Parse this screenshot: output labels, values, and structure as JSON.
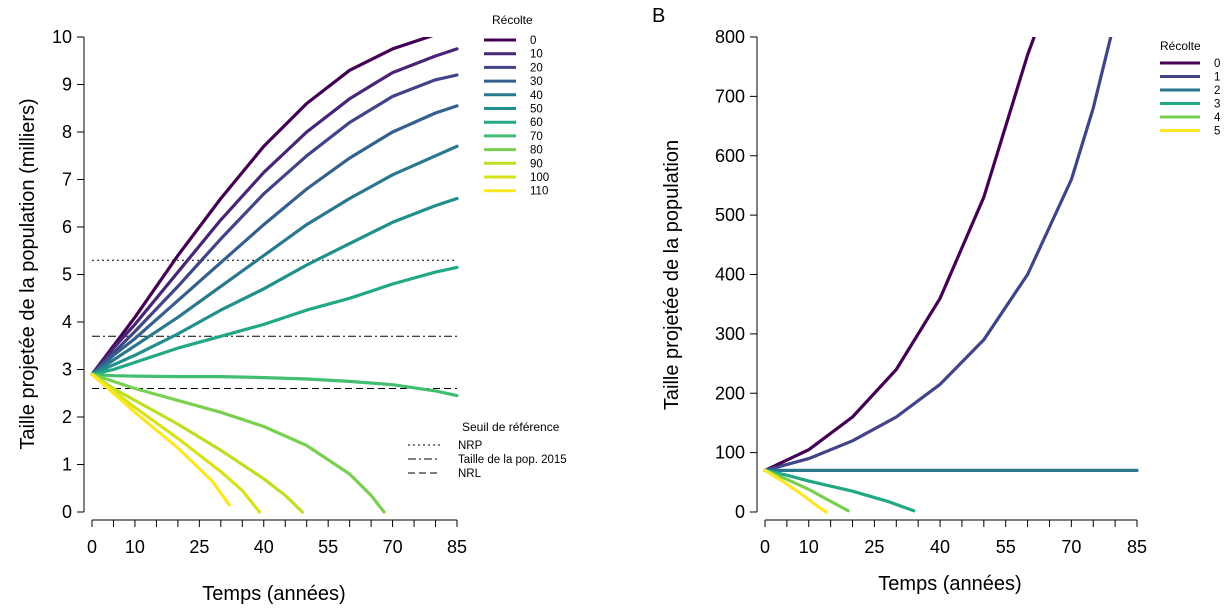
{
  "chart_data": [
    {
      "type": "line",
      "panel_label": "",
      "xlabel": "Temps (années)",
      "ylabel": "Taille projetée de la population (milliers)",
      "xlim": [
        0,
        85
      ],
      "ylim": [
        0,
        10
      ],
      "xticks": [
        0,
        10,
        25,
        40,
        55,
        70,
        85
      ],
      "yticks": [
        0,
        1,
        2,
        3,
        4,
        5,
        6,
        7,
        8,
        9,
        10
      ],
      "legend_title": "Récolte",
      "legend_placement": "top-right",
      "series": [
        {
          "name": "0",
          "color": "#440154",
          "x": [
            0,
            5,
            10,
            20,
            30,
            40,
            50,
            60,
            70,
            80,
            85
          ],
          "y": [
            2.9,
            3.5,
            4.1,
            5.4,
            6.6,
            7.7,
            8.6,
            9.3,
            9.75,
            10.05,
            10.2
          ]
        },
        {
          "name": "10",
          "color": "#482576",
          "x": [
            0,
            5,
            10,
            20,
            30,
            40,
            50,
            60,
            70,
            80,
            85
          ],
          "y": [
            2.9,
            3.45,
            3.95,
            5.05,
            6.15,
            7.15,
            8.0,
            8.7,
            9.25,
            9.6,
            9.75
          ]
        },
        {
          "name": "20",
          "color": "#414487",
          "x": [
            0,
            5,
            10,
            20,
            30,
            40,
            50,
            60,
            70,
            80,
            85
          ],
          "y": [
            2.9,
            3.35,
            3.8,
            4.75,
            5.75,
            6.7,
            7.5,
            8.2,
            8.75,
            9.1,
            9.2
          ]
        },
        {
          "name": "30",
          "color": "#35608d",
          "x": [
            0,
            5,
            10,
            20,
            30,
            40,
            50,
            60,
            70,
            80,
            85
          ],
          "y": [
            2.9,
            3.3,
            3.65,
            4.45,
            5.25,
            6.05,
            6.8,
            7.45,
            8.0,
            8.4,
            8.55
          ]
        },
        {
          "name": "40",
          "color": "#2a788e",
          "x": [
            0,
            5,
            10,
            20,
            30,
            40,
            50,
            60,
            70,
            80,
            85
          ],
          "y": [
            2.9,
            3.2,
            3.5,
            4.1,
            4.75,
            5.4,
            6.05,
            6.6,
            7.1,
            7.5,
            7.7
          ]
        },
        {
          "name": "50",
          "color": "#21908d",
          "x": [
            0,
            5,
            10,
            20,
            30,
            40,
            50,
            60,
            70,
            80,
            85
          ],
          "y": [
            2.9,
            3.1,
            3.3,
            3.75,
            4.25,
            4.7,
            5.2,
            5.65,
            6.1,
            6.45,
            6.6
          ]
        },
        {
          "name": "60",
          "color": "#22a884",
          "x": [
            0,
            5,
            10,
            20,
            30,
            40,
            50,
            60,
            70,
            80,
            85
          ],
          "y": [
            2.9,
            3.0,
            3.15,
            3.45,
            3.7,
            3.95,
            4.25,
            4.5,
            4.8,
            5.05,
            5.15
          ]
        },
        {
          "name": "70",
          "color": "#42be71",
          "x": [
            0,
            5,
            10,
            20,
            30,
            40,
            50,
            60,
            70,
            80,
            85
          ],
          "y": [
            2.9,
            2.87,
            2.86,
            2.85,
            2.85,
            2.83,
            2.8,
            2.75,
            2.68,
            2.55,
            2.45
          ]
        },
        {
          "name": "80",
          "color": "#7ad151",
          "x": [
            0,
            5,
            10,
            20,
            30,
            40,
            50,
            60,
            65,
            68
          ],
          "y": [
            2.9,
            2.75,
            2.6,
            2.35,
            2.1,
            1.8,
            1.4,
            0.8,
            0.35,
            0.0
          ]
        },
        {
          "name": "90",
          "color": "#bddf26",
          "x": [
            0,
            5,
            10,
            20,
            30,
            40,
            45,
            49
          ],
          "y": [
            2.9,
            2.6,
            2.35,
            1.85,
            1.3,
            0.7,
            0.35,
            0.0
          ]
        },
        {
          "name": "100",
          "color": "#d8e219",
          "x": [
            0,
            5,
            10,
            20,
            30,
            35,
            39
          ],
          "y": [
            2.9,
            2.55,
            2.2,
            1.55,
            0.85,
            0.45,
            0.0
          ]
        },
        {
          "name": "110",
          "color": "#fde725",
          "x": [
            0,
            5,
            10,
            20,
            28,
            32
          ],
          "y": [
            2.9,
            2.5,
            2.1,
            1.35,
            0.65,
            0.15
          ]
        }
      ],
      "reference_lines": {
        "title": "Seuil de référence",
        "items": [
          {
            "name": "NRP",
            "y": 5.3,
            "dash": "2,3"
          },
          {
            "name": "Taille de la pop. 2015",
            "y": 3.7,
            "dash": "8,3,2,3"
          },
          {
            "name": "NRL",
            "y": 2.6,
            "dash": "7,4"
          }
        ]
      }
    },
    {
      "type": "line",
      "panel_label": "B",
      "xlabel": "Temps (années)",
      "ylabel": "Taille projetée de la population",
      "xlim": [
        0,
        85
      ],
      "ylim": [
        0,
        800
      ],
      "xticks": [
        0,
        10,
        25,
        40,
        55,
        70,
        85
      ],
      "yticks": [
        0,
        100,
        200,
        300,
        400,
        500,
        600,
        700,
        800
      ],
      "legend_title": "Récolte",
      "legend_placement": "top-right",
      "series": [
        {
          "name": "0",
          "color": "#440154",
          "x": [
            0,
            10,
            20,
            30,
            40,
            50,
            55,
            60,
            63
          ],
          "y": [
            70,
            105,
            160,
            240,
            360,
            530,
            650,
            770,
            830
          ]
        },
        {
          "name": "1",
          "color": "#414487",
          "x": [
            0,
            10,
            20,
            30,
            40,
            50,
            60,
            70,
            75,
            80
          ],
          "y": [
            70,
            90,
            120,
            160,
            215,
            290,
            400,
            560,
            680,
            830
          ]
        },
        {
          "name": "2",
          "color": "#2a788e",
          "x": [
            0,
            10,
            20,
            40,
            60,
            80,
            85
          ],
          "y": [
            70,
            70,
            70,
            70,
            70,
            70,
            70
          ]
        },
        {
          "name": "3",
          "color": "#22a884",
          "x": [
            0,
            5,
            10,
            20,
            28,
            34
          ],
          "y": [
            70,
            62,
            52,
            35,
            18,
            2
          ]
        },
        {
          "name": "4",
          "color": "#7ad151",
          "x": [
            0,
            5,
            10,
            15,
            19
          ],
          "y": [
            70,
            55,
            38,
            18,
            2
          ]
        },
        {
          "name": "5",
          "color": "#fde725",
          "x": [
            0,
            4,
            8,
            12,
            14
          ],
          "y": [
            70,
            52,
            32,
            10,
            0
          ]
        }
      ]
    }
  ]
}
